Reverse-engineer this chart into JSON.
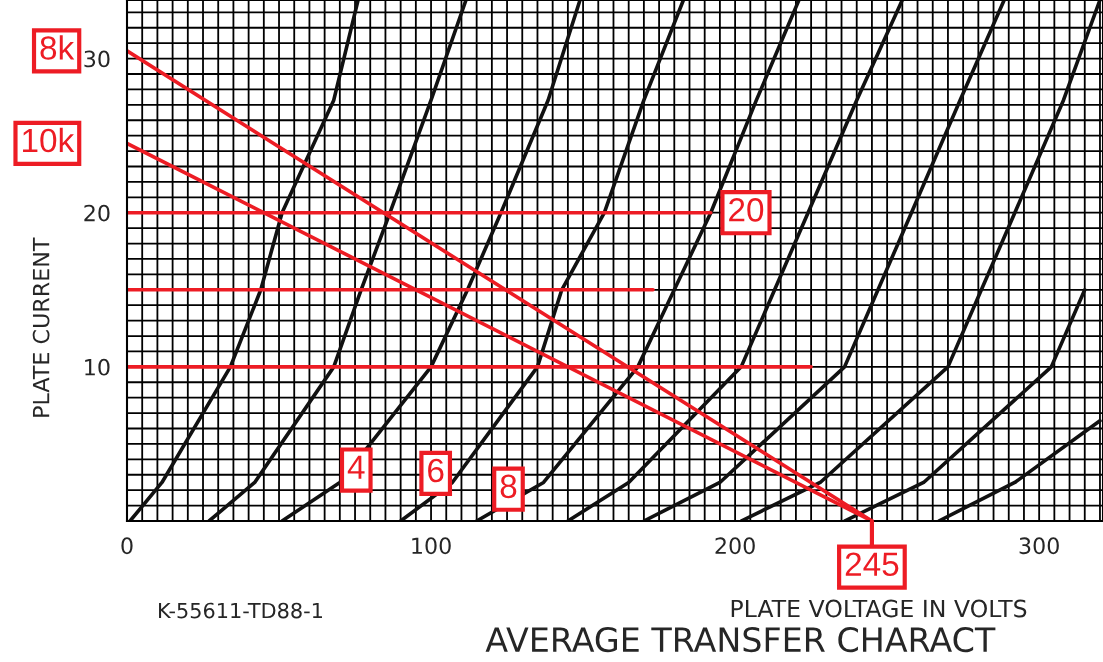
{
  "chart_data": {
    "type": "line",
    "title": "AVERAGE TRANSFER CHARACT",
    "xlabel": "PLATE VOLTAGE IN VOLTS",
    "ylabel": "PLATE CURRENT",
    "xlim": [
      0,
      321
    ],
    "ylim": [
      0,
      33.8
    ],
    "grid": true,
    "xticks": [
      0,
      {
        "value": 5,
        "label": null
      },
      {
        "value": 10,
        "label": null
      },
      {
        "value": 15,
        "label": null
      },
      {
        "value": 20,
        "label": null
      },
      {
        "value": 25,
        "label": null
      },
      {
        "value": 30,
        "label": null
      },
      {
        "value": 35,
        "label": null
      },
      {
        "value": 40,
        "label": null
      },
      {
        "value": 45,
        "label": null
      },
      {
        "value": 50,
        "label": null
      },
      {
        "value": 55,
        "label": null
      },
      {
        "value": 60,
        "label": null
      },
      {
        "value": 65,
        "label": null
      },
      {
        "value": 70,
        "label": null
      },
      {
        "value": 75,
        "label": null
      },
      {
        "value": 80,
        "label": null
      },
      {
        "value": 85,
        "label": null
      },
      {
        "value": 90,
        "label": null
      },
      {
        "value": 95,
        "label": null
      },
      100,
      {
        "value": 105,
        "label": null
      },
      {
        "value": 110,
        "label": null
      },
      {
        "value": 115,
        "label": null
      },
      {
        "value": 120,
        "label": null
      },
      {
        "value": 125,
        "label": null
      },
      {
        "value": 130,
        "label": null
      },
      {
        "value": 135,
        "label": null
      },
      {
        "value": 140,
        "label": null
      },
      {
        "value": 145,
        "label": null
      },
      {
        "value": 150,
        "label": null
      },
      {
        "value": 155,
        "label": null
      },
      {
        "value": 160,
        "label": null
      },
      {
        "value": 165,
        "label": null
      },
      {
        "value": 170,
        "label": null
      },
      {
        "value": 175,
        "label": null
      },
      {
        "value": 180,
        "label": null
      },
      {
        "value": 185,
        "label": null
      },
      {
        "value": 190,
        "label": null
      },
      {
        "value": 195,
        "label": null
      },
      200,
      {
        "value": 205,
        "label": null
      },
      {
        "value": 210,
        "label": null
      },
      {
        "value": 215,
        "label": null
      },
      {
        "value": 220,
        "label": null
      },
      {
        "value": 225,
        "label": null
      },
      {
        "value": 230,
        "label": null
      },
      {
        "value": 235,
        "label": null
      },
      {
        "value": 240,
        "label": null
      },
      {
        "value": 245,
        "label": null
      },
      {
        "value": 250,
        "label": null
      },
      {
        "value": 255,
        "label": null
      },
      {
        "value": 260,
        "label": null
      },
      {
        "value": 265,
        "label": null
      },
      {
        "value": 270,
        "label": null
      },
      {
        "value": 275,
        "label": null
      },
      {
        "value": 280,
        "label": null
      },
      {
        "value": 285,
        "label": null
      },
      {
        "value": 290,
        "label": null
      },
      {
        "value": 295,
        "label": null
      },
      300,
      {
        "value": 305,
        "label": null
      },
      {
        "value": 310,
        "label": null
      },
      {
        "value": 315,
        "label": null
      },
      {
        "value": 320,
        "label": null
      }
    ],
    "yticks": [
      {
        "value": 0,
        "label": null
      },
      {
        "value": 1,
        "label": null
      },
      {
        "value": 2,
        "label": null
      },
      {
        "value": 3,
        "label": null
      },
      {
        "value": 4,
        "label": null
      },
      {
        "value": 5,
        "label": null
      },
      {
        "value": 6,
        "label": null
      },
      {
        "value": 7,
        "label": null
      },
      {
        "value": 8,
        "label": null
      },
      {
        "value": 9,
        "label": null
      },
      10,
      {
        "value": 11,
        "label": null
      },
      {
        "value": 12,
        "label": null
      },
      {
        "value": 13,
        "label": null
      },
      {
        "value": 14,
        "label": null
      },
      {
        "value": 15,
        "label": null
      },
      {
        "value": 16,
        "label": null
      },
      {
        "value": 17,
        "label": null
      },
      {
        "value": 18,
        "label": null
      },
      {
        "value": 19,
        "label": null
      },
      20,
      {
        "value": 21,
        "label": null
      },
      {
        "value": 22,
        "label": null
      },
      {
        "value": 23,
        "label": null
      },
      {
        "value": 24,
        "label": null
      },
      {
        "value": 25,
        "label": null
      },
      {
        "value": 26,
        "label": null
      },
      {
        "value": 27,
        "label": null
      },
      {
        "value": 28,
        "label": null
      },
      {
        "value": 29,
        "label": null
      },
      30,
      {
        "value": 31,
        "label": null
      },
      {
        "value": 32,
        "label": null
      },
      {
        "value": 33,
        "label": null
      }
    ],
    "series": [
      {
        "color": "#111111",
        "x": [
          1,
          11.5,
          34,
          44,
          51,
          68,
          76
        ],
        "values": [
          0,
          2.5,
          10,
          15,
          20,
          27.3,
          33.8
        ]
      },
      {
        "color": "#111111",
        "x": [
          27,
          42,
          68,
          77,
          86.5,
          100,
          111.5
        ],
        "values": [
          0,
          2.5,
          10,
          15,
          20,
          27.3,
          33.8
        ]
      },
      {
        "color": "#111111",
        "x": [
          51,
          70,
          100,
          112,
          123,
          138.5,
          149
        ],
        "values": [
          0,
          2.5,
          10,
          15,
          20,
          27.3,
          33.8
        ]
      },
      {
        "color": "#111111",
        "x": [
          90,
          107,
          135,
          143,
          157,
          170,
          183
        ],
        "values": [
          0,
          2.5,
          10,
          15,
          20,
          27.3,
          33.8
        ]
      },
      {
        "color": "#111111",
        "x": [
          115,
          137,
          168,
          180,
          192,
          207,
          221
        ],
        "values": [
          0,
          2.5,
          10,
          15,
          20,
          27.3,
          33.8
        ]
      },
      {
        "color": "#111111",
        "x": [
          145,
          165,
          202,
          213,
          224,
          240,
          255
        ],
        "values": [
          0,
          2.5,
          10,
          15,
          20,
          27.3,
          33.8
        ]
      },
      {
        "color": "#111111",
        "x": [
          170,
          195,
          236,
          247,
          258,
          274,
          288.5
        ],
        "values": [
          0,
          2.5,
          10,
          15,
          20,
          27.3,
          33.8
        ]
      },
      {
        "color": "#111111",
        "x": [
          202,
          228,
          270,
          281,
          292,
          308,
          320
        ],
        "values": [
          0,
          2.5,
          10,
          15,
          20,
          27.3,
          33.8
        ]
      },
      {
        "color": "#111111",
        "x": [
          236,
          262,
          304,
          315
        ],
        "values": [
          0,
          2.5,
          10,
          15
        ]
      },
      {
        "color": "#111111",
        "x": [
          267,
          292,
          320
        ],
        "values": [
          0,
          2.5,
          6.5
        ]
      },
      {
        "color": "#ed1c24",
        "x": [
          0,
          245
        ],
        "values": [
          30.5,
          0
        ]
      },
      {
        "color": "#ed1c24",
        "x": [
          0,
          245
        ],
        "values": [
          24.5,
          0
        ]
      },
      {
        "color": "#ed1c24",
        "x": [
          0,
          192
        ],
        "values": [
          20,
          20
        ]
      },
      {
        "color": "#ed1c24",
        "x": [
          0,
          173
        ],
        "values": [
          15,
          15
        ]
      },
      {
        "color": "#ed1c24",
        "x": [
          0,
          225
        ],
        "values": [
          10,
          10
        ]
      }
    ],
    "annotations": [
      {
        "text": "8k",
        "x": 0,
        "y": 30.5
      },
      {
        "text": "10k",
        "x": 0,
        "y": 24.5
      },
      {
        "text": "20",
        "x": 192,
        "y": 20
      },
      "4",
      "6",
      "8",
      {
        "text": "245",
        "x": 245,
        "y": 0
      },
      "K-55611-TD88-1"
    ]
  }
}
